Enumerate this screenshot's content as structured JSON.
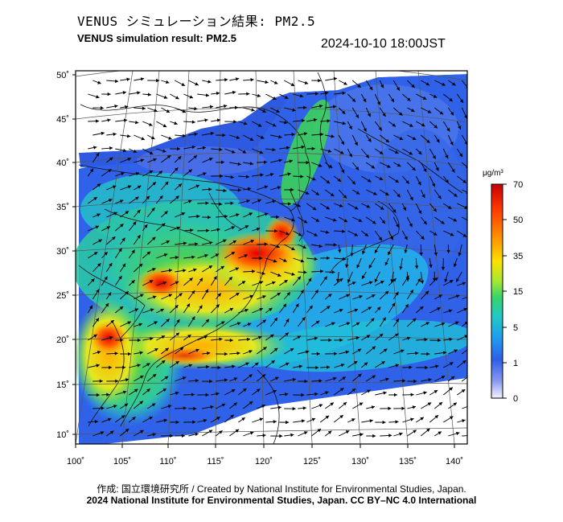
{
  "header": {
    "title_jp": "VENUS シミュレーション結果: PM2.5",
    "title_en": "VENUS simulation result: PM2.5",
    "timestamp": "2024-10-10 18:00JST"
  },
  "map": {
    "lat_labels": [
      "50˚",
      "45˚",
      "40˚",
      "35˚",
      "30˚",
      "25˚",
      "20˚",
      "15˚",
      "10˚"
    ],
    "lon_labels": [
      "100˚",
      "105˚",
      "110˚",
      "115˚",
      "120˚",
      "125˚",
      "130˚",
      "135˚",
      "140˚"
    ],
    "lat_values": [
      50,
      45,
      40,
      35,
      30,
      25,
      20,
      15,
      10
    ],
    "lon_values": [
      100,
      105,
      110,
      115,
      120,
      125,
      130,
      135,
      140
    ],
    "colors": {
      "land_line": "#111111",
      "grid_line": "#555555",
      "ocean_bg": "#ffffff"
    }
  },
  "colorbar": {
    "unit": "μg/m³",
    "tick_labels": [
      "70",
      "50",
      "35",
      "15",
      "5",
      "1",
      "0"
    ],
    "colors": [
      "#cc0000",
      "#ff4000",
      "#ff9a00",
      "#ffd400",
      "#d8ef1a",
      "#4fd64a",
      "#2ec8b4",
      "#21a8ef",
      "#2f62e8",
      "#7a8ff0",
      "#e3e6ff"
    ]
  },
  "footer": {
    "credit": "作成: 国立環境研究所 / Created by National Institute for Environmental Studies, Japan.",
    "copyright": "2024 National Institute for Environmental Studies, Japan. CC BY–NC 4.0 International"
  }
}
